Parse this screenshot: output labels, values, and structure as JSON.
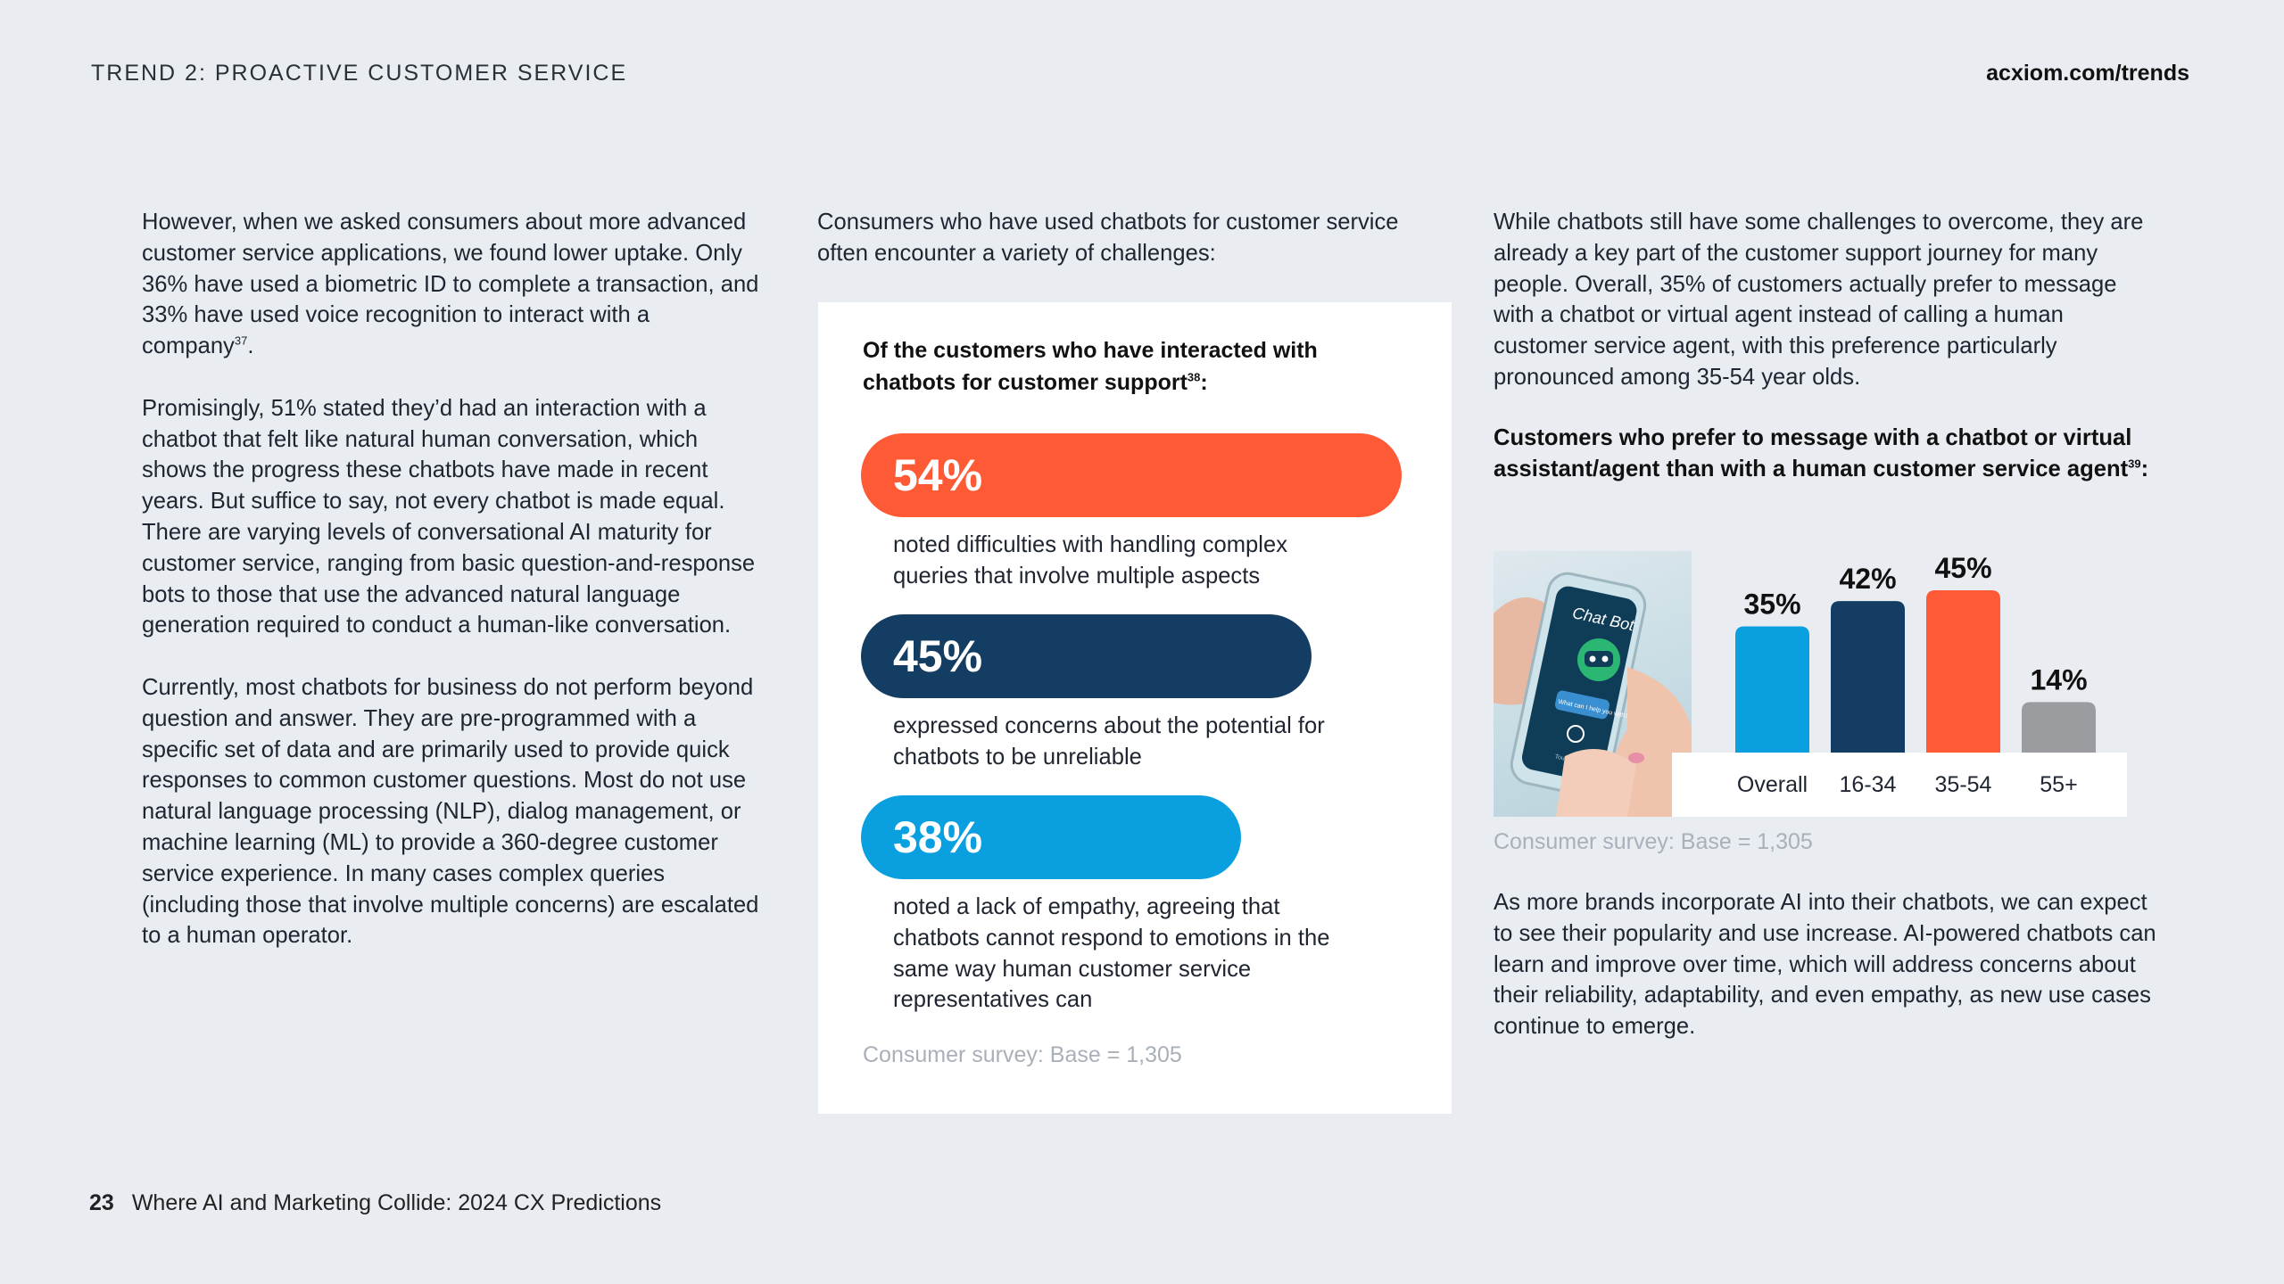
{
  "header": {
    "section": "TREND 2: PROACTIVE CUSTOMER SERVICE",
    "site": "acxiom.com/trends"
  },
  "col1": {
    "p1": "However, when we asked consumers about more advanced customer service applications, we found lower uptake. Only 36% have used a biometric ID to complete a transaction, and 33% have used voice recognition to interact with a company",
    "p1_ref": "37",
    "p1_end": ".",
    "p2": "Promisingly, 51% stated they’d had an interaction with a chatbot that felt like natural human conversation, which shows the progress these chatbots have made in recent years. But suffice to say, not every chatbot is made equal. There are varying levels of conversational AI maturity for customer service, ranging from basic question-and-response bots to those that use the advanced natural language generation required to conduct a human-like conversation.",
    "p3": "Currently, most chatbots for business do not perform beyond question and answer. They are pre-programmed with a specific set of data and are primarily used to provide quick responses to common customer questions. Most do not use natural language processing (NLP), dialog management, or machine learning (ML) to provide a 360-degree customer service experience. In many cases complex queries (including those that involve multiple concerns) are escalated to a human operator."
  },
  "col2": {
    "intro": "Consumers who have used chatbots for customer service often encounter a variety of challenges:",
    "card": {
      "title": "Of the customers who have interacted with chatbots for customer support",
      "title_ref": "38",
      "title_end": ":",
      "stats": [
        {
          "value": "54%",
          "fraction": 0.54,
          "color": "#ff5a36",
          "desc": "noted difficulties with handling complex queries that involve multiple aspects"
        },
        {
          "value": "45%",
          "fraction": 0.45,
          "color": "#143d63",
          "desc": "expressed concerns about the potential for chatbots to be unreliable"
        },
        {
          "value": "38%",
          "fraction": 0.38,
          "color": "#0aa0e0",
          "desc": "noted a lack of empathy, agreeing that chatbots cannot respond to emotions in the same way human customer service representatives can"
        }
      ],
      "source": "Consumer survey: Base = 1,305"
    }
  },
  "col3": {
    "p1": "While chatbots still have some challenges to overcome, they are already a key part of the customer support journey for many people. Overall, 35% of customers actually prefer to message with a chatbot or virtual agent instead of calling a human customer service agent, with this preference particularly pronounced among 35-54 year olds.",
    "chart_title": "Customers who prefer to message with a chatbot or virtual assistant/agent than with a human customer service agent",
    "chart_title_ref": "39",
    "chart_title_end": ":",
    "image": {
      "screen_title": "Chat Bot",
      "bubble_text": "What can I help you with?",
      "hint": "Touch to speak"
    },
    "source": "Consumer survey: Base = 1,305",
    "p2": "As more brands incorporate AI into their chatbots, we can expect to see their popularity and use increase. AI-powered chatbots can learn and improve over time, which will address concerns about their reliability, adaptability, and even empathy, as new use cases continue to emerge."
  },
  "chart_data": [
    {
      "type": "bar",
      "title": "Customers who prefer to message with a chatbot or virtual assistant/agent than with a human customer service agent",
      "categories": [
        "Overall",
        "16-34",
        "35-54",
        "55+"
      ],
      "values": [
        35,
        42,
        45,
        14
      ],
      "labels": [
        "35%",
        "42%",
        "45%",
        "14%"
      ],
      "colors": [
        "#0aa0e0",
        "#143d63",
        "#ff5a36",
        "#9a9ca0"
      ],
      "ylim": [
        0,
        50
      ]
    }
  ],
  "footer": {
    "page": "23",
    "title": "Where AI and Marketing Collide: 2024 CX Predictions"
  }
}
